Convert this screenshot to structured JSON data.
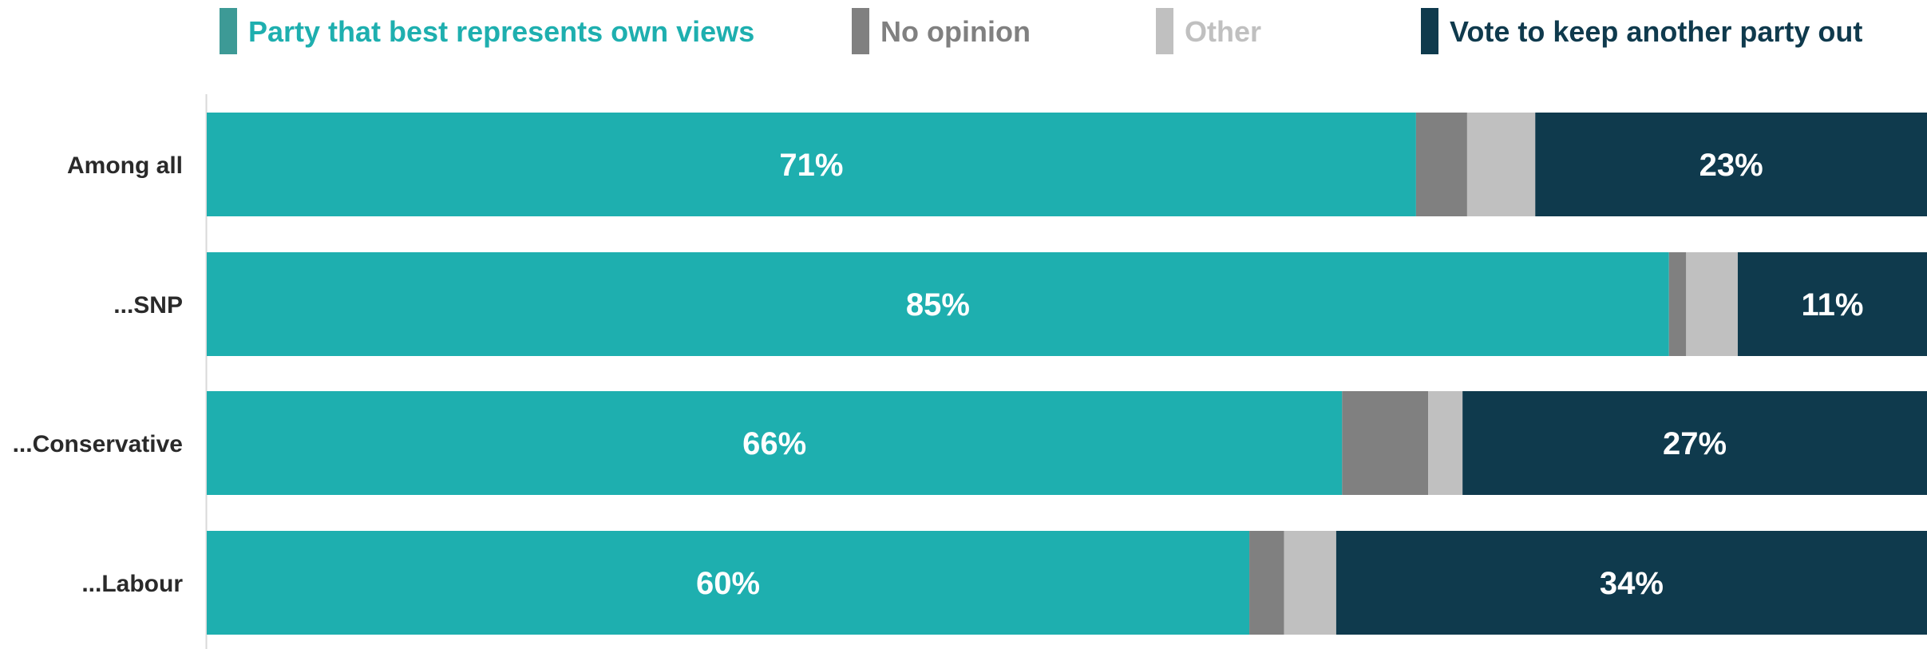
{
  "chart_data": {
    "type": "bar",
    "orientation": "horizontal",
    "stacked": true,
    "title": "",
    "xlabel": "",
    "ylabel": "",
    "xlim": [
      0,
      100
    ],
    "unit": "%",
    "legend_position": "top",
    "grid": false,
    "categories": [
      "Among all",
      "...SNP",
      "...Conservative",
      "...Labour"
    ],
    "series": [
      {
        "name": "Party that best represents own views",
        "color": "#1eafaf",
        "legend_color": "#3d9a96",
        "legend_text_color": "#1eafaf",
        "values": [
          71,
          85,
          66,
          60
        ],
        "labels": [
          "71%",
          "85%",
          "66%",
          "60%"
        ]
      },
      {
        "name": "No opinion",
        "color": "#808080",
        "legend_color": "#808080",
        "legend_text_color": "#808080",
        "values": [
          3,
          1,
          5,
          2
        ],
        "labels": [
          "",
          "",
          "",
          ""
        ]
      },
      {
        "name": "Other",
        "color": "#c0c0c0",
        "legend_color": "#c0c0c0",
        "legend_text_color": "#c0c0c0",
        "values": [
          4,
          3,
          2,
          3
        ],
        "labels": [
          "",
          "",
          "",
          ""
        ]
      },
      {
        "name": "Vote to keep another party out",
        "color": "#0f3a4d",
        "legend_color": "#0f3a4d",
        "legend_text_color": "#0f3a4d",
        "values": [
          23,
          11,
          27,
          34
        ],
        "labels": [
          "23%",
          "11%",
          "27%",
          "34%"
        ]
      }
    ]
  }
}
